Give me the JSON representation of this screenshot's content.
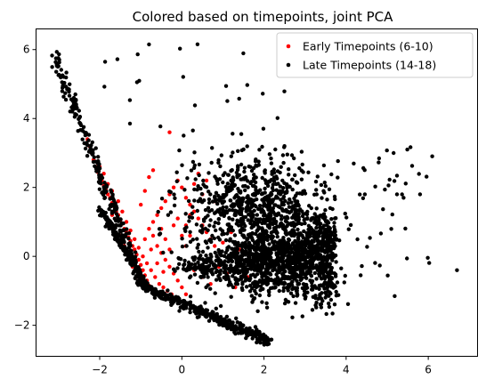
{
  "chart_data": {
    "type": "scatter",
    "title": "Colored based on timepoints, joint PCA",
    "xlabel": "",
    "ylabel": "",
    "xlim": [
      -3.55,
      7.2
    ],
    "ylim": [
      -2.9,
      6.6
    ],
    "xticks": [
      -2,
      0,
      2,
      4,
      6
    ],
    "yticks": [
      -2,
      0,
      2,
      4,
      6
    ],
    "xtick_labels": [
      "−2",
      "0",
      "2",
      "4",
      "6"
    ],
    "ytick_labels": [
      "−2",
      "0",
      "2",
      "4",
      "6"
    ],
    "grid": false,
    "legend_position": "top-right",
    "series": [
      {
        "name": "Early Timepoints (6-10)",
        "color": "#ff0000",
        "points": [
          [
            -2.3,
            3.4
          ],
          [
            -2.25,
            3.2
          ],
          [
            -2.2,
            3.0
          ],
          [
            -2.15,
            2.8
          ],
          [
            -2.1,
            2.6
          ],
          [
            -2.05,
            2.45
          ],
          [
            -2.0,
            2.3
          ],
          [
            -1.95,
            2.2
          ],
          [
            -1.9,
            2.05
          ],
          [
            -1.85,
            1.95
          ],
          [
            -1.8,
            1.8
          ],
          [
            -1.75,
            1.7
          ],
          [
            -1.7,
            1.55
          ],
          [
            -1.65,
            1.45
          ],
          [
            -1.6,
            1.3
          ],
          [
            -1.55,
            1.2
          ],
          [
            -1.5,
            1.05
          ],
          [
            -1.45,
            0.95
          ],
          [
            -1.4,
            0.8
          ],
          [
            -1.35,
            0.7
          ],
          [
            -1.3,
            0.55
          ],
          [
            -1.25,
            0.45
          ],
          [
            -1.2,
            0.3
          ],
          [
            -1.15,
            0.2
          ],
          [
            -1.1,
            0.05
          ],
          [
            -1.05,
            -0.1
          ],
          [
            -1.0,
            -0.25
          ],
          [
            -0.95,
            -0.4
          ],
          [
            -0.9,
            -0.55
          ],
          [
            -0.85,
            -0.7
          ],
          [
            -1.7,
            1.2
          ],
          [
            -1.6,
            0.9
          ],
          [
            -1.5,
            0.6
          ],
          [
            -1.4,
            0.3
          ],
          [
            -1.3,
            0.0
          ],
          [
            -1.2,
            -0.3
          ],
          [
            -1.1,
            -0.6
          ],
          [
            -1.0,
            -0.8
          ],
          [
            -0.9,
            -0.9
          ],
          [
            -0.8,
            -0.85
          ],
          [
            -1.8,
            2.1
          ],
          [
            -1.7,
            1.9
          ],
          [
            -1.9,
            2.4
          ],
          [
            -2.0,
            2.6
          ],
          [
            -1.55,
            1.6
          ],
          [
            -1.45,
            1.3
          ],
          [
            -1.35,
            1.0
          ],
          [
            -1.25,
            0.75
          ],
          [
            -1.15,
            0.5
          ],
          [
            -1.05,
            0.25
          ],
          [
            -0.95,
            0.0
          ],
          [
            -0.85,
            -0.2
          ],
          [
            -0.75,
            -0.4
          ],
          [
            -0.65,
            -0.6
          ],
          [
            -0.55,
            -0.8
          ],
          [
            -0.45,
            -0.9
          ],
          [
            -0.35,
            -1.0
          ],
          [
            -0.25,
            -1.1
          ],
          [
            -0.15,
            -1.2
          ],
          [
            -0.05,
            -1.3
          ],
          [
            -0.9,
            0.5
          ],
          [
            -0.8,
            0.8
          ],
          [
            -0.7,
            1.0
          ],
          [
            -0.6,
            1.2
          ],
          [
            -0.5,
            1.4
          ],
          [
            -0.4,
            1.6
          ],
          [
            -0.3,
            1.8
          ],
          [
            -0.2,
            2.0
          ],
          [
            -0.1,
            2.2
          ],
          [
            0.0,
            2.0
          ],
          [
            0.1,
            1.7
          ],
          [
            0.2,
            1.5
          ],
          [
            0.3,
            1.3
          ],
          [
            0.4,
            1.1
          ],
          [
            0.5,
            0.9
          ],
          [
            0.6,
            0.7
          ],
          [
            0.7,
            0.5
          ],
          [
            0.8,
            0.3
          ],
          [
            0.2,
            0.6
          ],
          [
            0.1,
            0.3
          ],
          [
            -0.6,
            0.3
          ],
          [
            -0.5,
            0.1
          ],
          [
            -0.4,
            -0.1
          ],
          [
            -0.3,
            -0.3
          ],
          [
            -0.2,
            -0.5
          ],
          [
            -0.1,
            -0.7
          ],
          [
            0.0,
            -0.9
          ],
          [
            0.1,
            -1.1
          ],
          [
            -0.7,
            0.6
          ],
          [
            -0.75,
            0.2
          ],
          [
            -1.0,
            1.5
          ],
          [
            -0.9,
            1.9
          ],
          [
            -0.8,
            2.3
          ],
          [
            -0.7,
            2.5
          ],
          [
            -0.3,
            3.6
          ],
          [
            0.3,
            2.1
          ],
          [
            0.5,
            1.8
          ],
          [
            0.6,
            2.2
          ],
          [
            0.4,
            2.4
          ],
          [
            0.8,
            1.6
          ],
          [
            1.2,
            0.7
          ],
          [
            1.0,
            0.4
          ],
          [
            0.9,
            -0.3
          ],
          [
            1.1,
            -0.5
          ],
          [
            1.3,
            -0.9
          ],
          [
            1.4,
            0.2
          ],
          [
            1.6,
            -0.6
          ],
          [
            0.7,
            -0.8
          ],
          [
            0.5,
            -0.6
          ],
          [
            0.3,
            -0.4
          ],
          [
            -0.5,
            0.8
          ],
          [
            -0.4,
            0.5
          ],
          [
            -0.3,
            0.2
          ],
          [
            -0.2,
            0.9
          ],
          [
            -0.1,
            1.1
          ],
          [
            0.0,
            0.6
          ],
          [
            0.1,
            0.9
          ],
          [
            0.2,
            1.2
          ],
          [
            -0.6,
            -0.2
          ],
          [
            -0.45,
            -0.45
          ]
        ]
      },
      {
        "name": "Late Timepoints (14-18)",
        "color": "#000000",
        "points": []
      }
    ]
  },
  "legend": {
    "early_label": "Early Timepoints (6-10)",
    "late_label": "Late Timepoints (14-18)"
  }
}
